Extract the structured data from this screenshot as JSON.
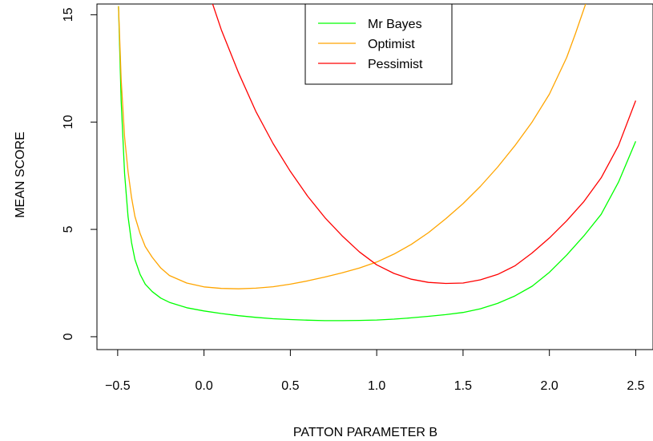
{
  "chart_data": {
    "type": "line",
    "xlabel": "PATTON  PARAMETER  B",
    "ylabel": "MEAN  SCORE",
    "xlim": [
      -0.62,
      2.6
    ],
    "ylim": [
      -0.6,
      15.5
    ],
    "x_ticks": [
      "−0.5",
      "0.0",
      "0.5",
      "1.0",
      "1.5",
      "2.0",
      "2.5"
    ],
    "x_tick_values": [
      -0.5,
      0.0,
      0.5,
      1.0,
      1.5,
      2.0,
      2.5
    ],
    "y_ticks": [
      "0",
      "5",
      "10",
      "15"
    ],
    "y_tick_values": [
      0,
      5,
      10,
      15
    ],
    "grid": false,
    "legend_position": "top-center",
    "series": [
      {
        "name": "Mr Bayes",
        "color": "#00ff00",
        "points": [
          [
            -0.495,
            15.4
          ],
          [
            -0.48,
            11.0
          ],
          [
            -0.46,
            7.6
          ],
          [
            -0.44,
            5.6
          ],
          [
            -0.42,
            4.4
          ],
          [
            -0.4,
            3.6
          ],
          [
            -0.37,
            2.9
          ],
          [
            -0.34,
            2.45
          ],
          [
            -0.3,
            2.1
          ],
          [
            -0.25,
            1.8
          ],
          [
            -0.2,
            1.6
          ],
          [
            -0.1,
            1.35
          ],
          [
            0.0,
            1.2
          ],
          [
            0.1,
            1.08
          ],
          [
            0.2,
            0.98
          ],
          [
            0.3,
            0.9
          ],
          [
            0.4,
            0.84
          ],
          [
            0.5,
            0.8
          ],
          [
            0.6,
            0.77
          ],
          [
            0.7,
            0.75
          ],
          [
            0.8,
            0.75
          ],
          [
            0.9,
            0.76
          ],
          [
            1.0,
            0.78
          ],
          [
            1.1,
            0.82
          ],
          [
            1.2,
            0.88
          ],
          [
            1.3,
            0.95
          ],
          [
            1.4,
            1.03
          ],
          [
            1.5,
            1.13
          ],
          [
            1.6,
            1.3
          ],
          [
            1.7,
            1.55
          ],
          [
            1.8,
            1.9
          ],
          [
            1.9,
            2.35
          ],
          [
            2.0,
            3.0
          ],
          [
            2.1,
            3.8
          ],
          [
            2.2,
            4.7
          ],
          [
            2.3,
            5.7
          ],
          [
            2.4,
            7.2
          ],
          [
            2.5,
            9.1
          ]
        ]
      },
      {
        "name": "Optimist",
        "color": "#ffa500",
        "points": [
          [
            -0.495,
            15.4
          ],
          [
            -0.48,
            12.0
          ],
          [
            -0.46,
            9.3
          ],
          [
            -0.44,
            7.7
          ],
          [
            -0.42,
            6.5
          ],
          [
            -0.4,
            5.6
          ],
          [
            -0.37,
            4.8
          ],
          [
            -0.34,
            4.2
          ],
          [
            -0.3,
            3.7
          ],
          [
            -0.25,
            3.2
          ],
          [
            -0.2,
            2.85
          ],
          [
            -0.1,
            2.5
          ],
          [
            0.0,
            2.32
          ],
          [
            0.1,
            2.25
          ],
          [
            0.2,
            2.23
          ],
          [
            0.3,
            2.26
          ],
          [
            0.4,
            2.33
          ],
          [
            0.5,
            2.45
          ],
          [
            0.6,
            2.6
          ],
          [
            0.7,
            2.78
          ],
          [
            0.8,
            2.98
          ],
          [
            0.9,
            3.2
          ],
          [
            1.0,
            3.48
          ],
          [
            1.1,
            3.85
          ],
          [
            1.2,
            4.3
          ],
          [
            1.3,
            4.85
          ],
          [
            1.4,
            5.5
          ],
          [
            1.5,
            6.2
          ],
          [
            1.6,
            7.0
          ],
          [
            1.7,
            7.9
          ],
          [
            1.8,
            8.9
          ],
          [
            1.9,
            10.0
          ],
          [
            2.0,
            11.3
          ],
          [
            2.1,
            13.0
          ],
          [
            2.15,
            14.1
          ],
          [
            2.21,
            15.5
          ]
        ]
      },
      {
        "name": "Pessimist",
        "color": "#ff0000",
        "points": [
          [
            0.05,
            15.5
          ],
          [
            0.1,
            14.3
          ],
          [
            0.2,
            12.3
          ],
          [
            0.3,
            10.5
          ],
          [
            0.4,
            9.0
          ],
          [
            0.5,
            7.7
          ],
          [
            0.6,
            6.55
          ],
          [
            0.7,
            5.55
          ],
          [
            0.8,
            4.7
          ],
          [
            0.9,
            3.95
          ],
          [
            1.0,
            3.35
          ],
          [
            1.1,
            2.95
          ],
          [
            1.2,
            2.68
          ],
          [
            1.3,
            2.53
          ],
          [
            1.4,
            2.48
          ],
          [
            1.5,
            2.5
          ],
          [
            1.6,
            2.65
          ],
          [
            1.7,
            2.9
          ],
          [
            1.8,
            3.3
          ],
          [
            1.9,
            3.9
          ],
          [
            2.0,
            4.6
          ],
          [
            2.1,
            5.4
          ],
          [
            2.2,
            6.3
          ],
          [
            2.3,
            7.4
          ],
          [
            2.4,
            8.9
          ],
          [
            2.5,
            11.0
          ]
        ]
      }
    ]
  }
}
